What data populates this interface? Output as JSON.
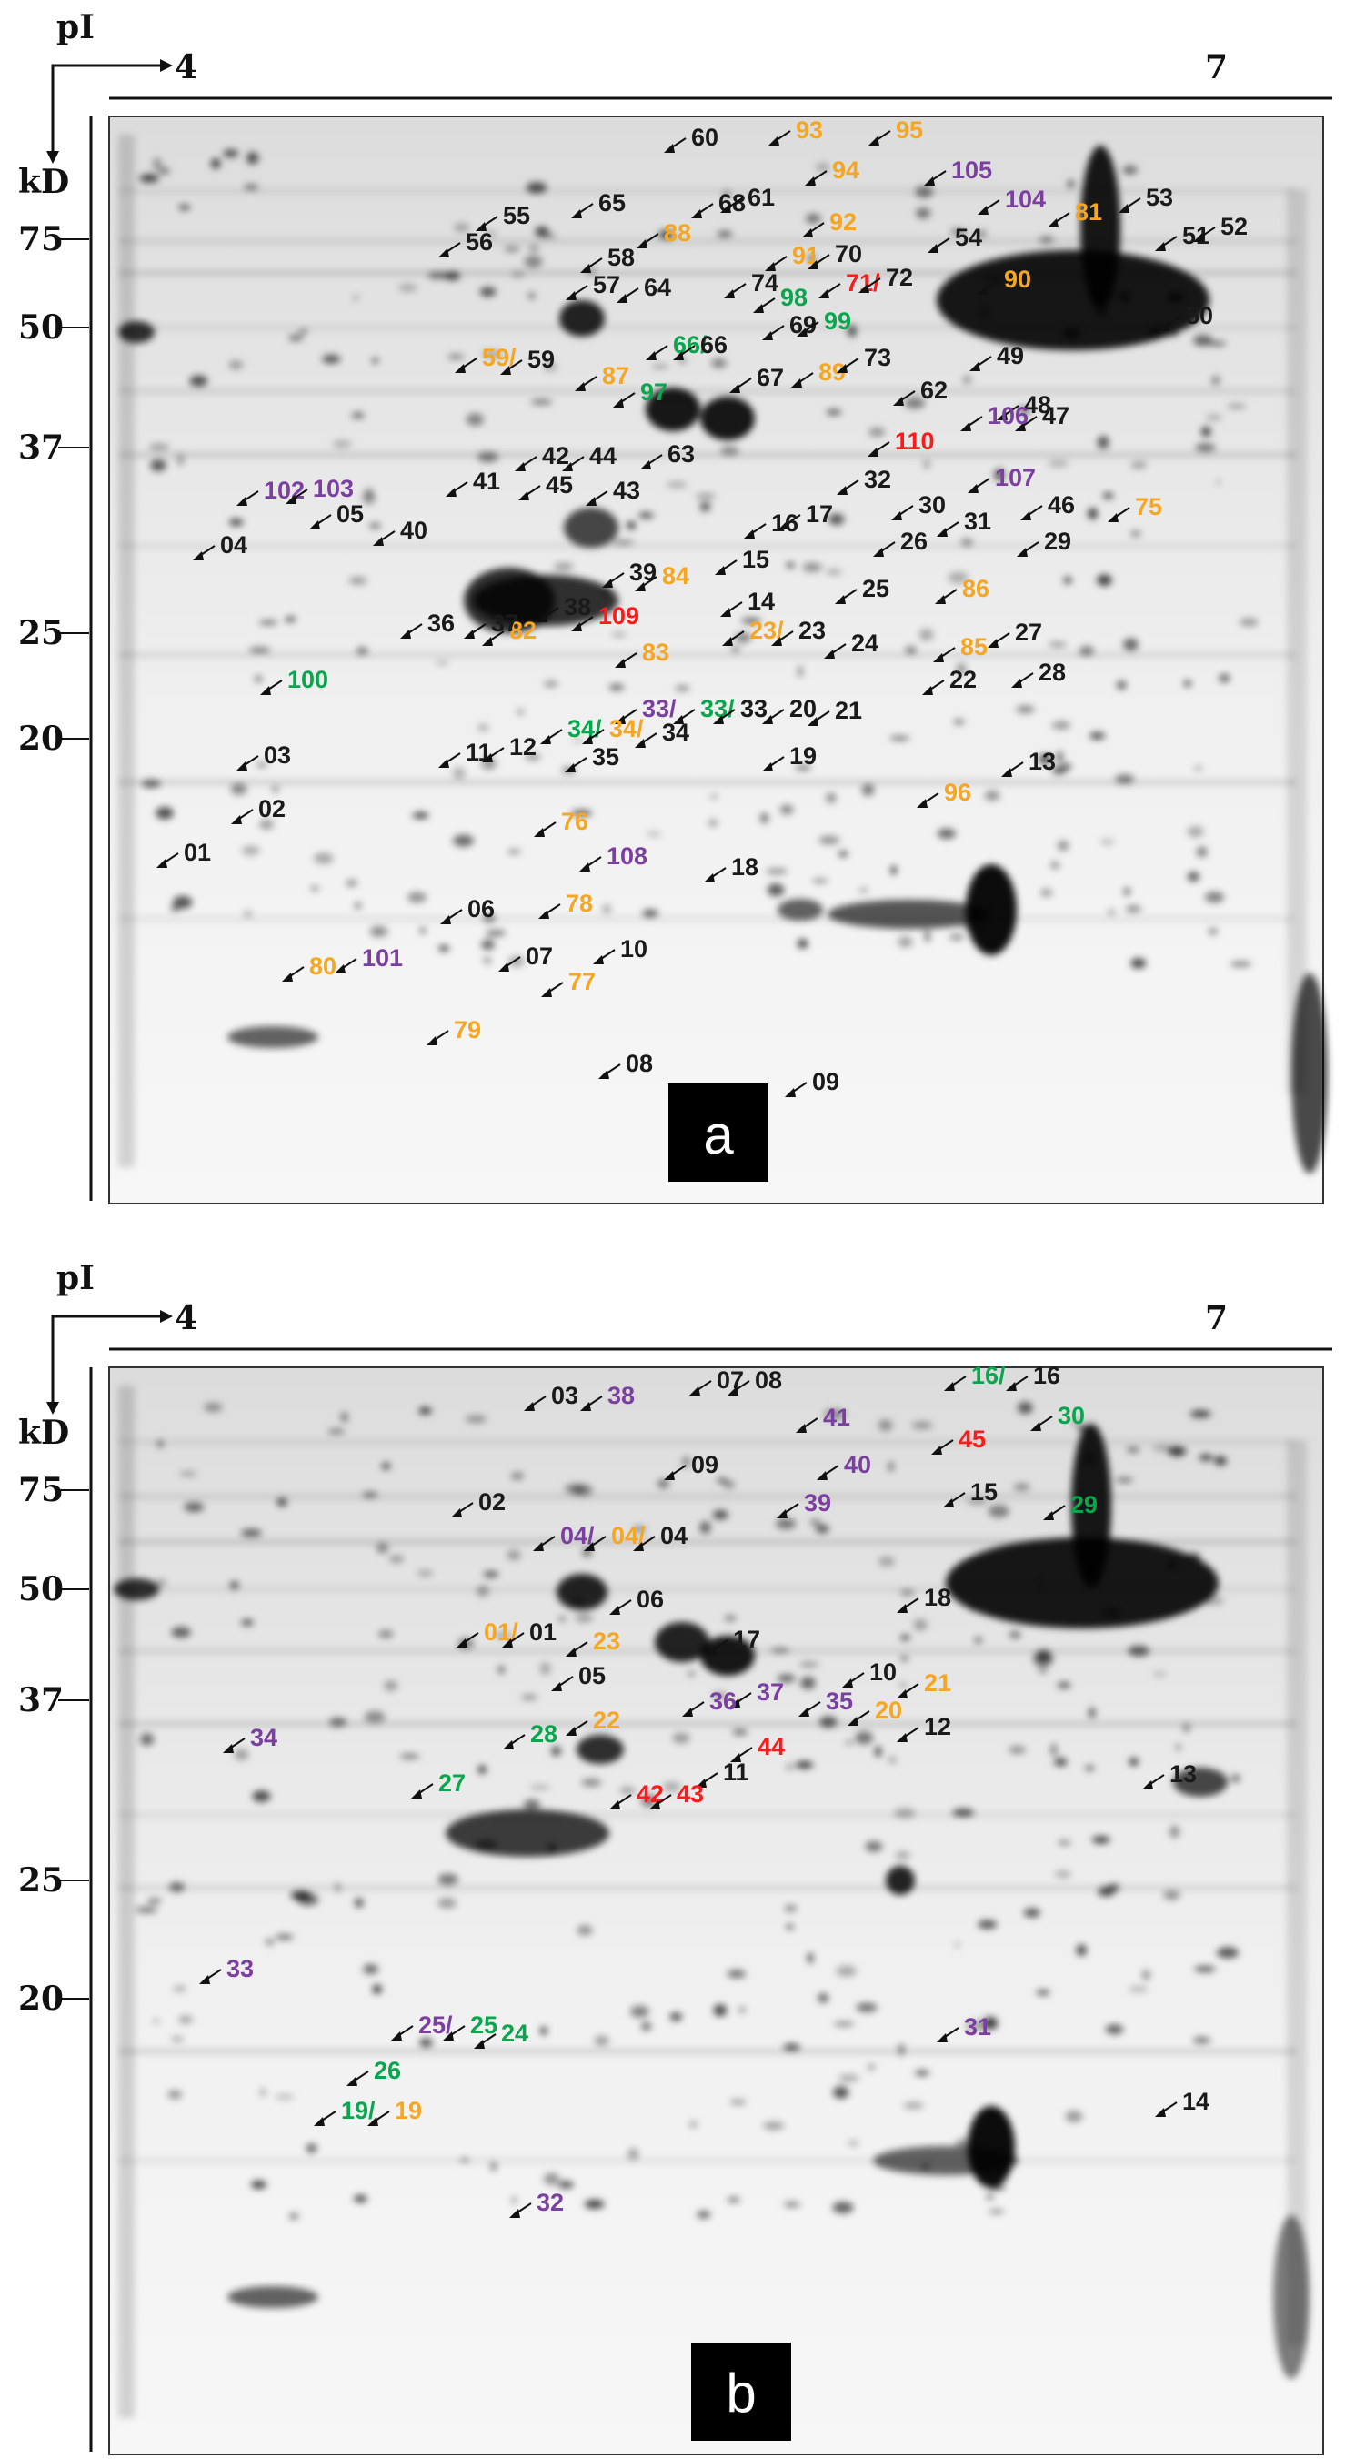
{
  "colors": {
    "black": "#1a1a1a",
    "orange": "#f5a623",
    "purple": "#7b3fa0",
    "green": "#0aa64e",
    "red": "#ff1a1a"
  },
  "panels": [
    {
      "id": "a",
      "letter": "a",
      "axis": {
        "pi_label": "pI",
        "pi_min": "4",
        "pi_max": "7",
        "kd_label": "kD",
        "kd_ticks": [
          "75",
          "50",
          "37",
          "25",
          "20"
        ]
      },
      "spots": [
        {
          "t": "60",
          "c": "black"
        },
        {
          "t": "93",
          "c": "orange"
        },
        {
          "t": "95",
          "c": "orange"
        },
        {
          "t": "94",
          "c": "orange"
        },
        {
          "t": "105",
          "c": "purple"
        },
        {
          "t": "53",
          "c": "black"
        },
        {
          "t": "65",
          "c": "black"
        },
        {
          "t": "55",
          "c": "black"
        },
        {
          "t": "68",
          "c": "black"
        },
        {
          "t": "61",
          "c": "black"
        },
        {
          "t": "92",
          "c": "orange"
        },
        {
          "t": "104",
          "c": "purple"
        },
        {
          "t": "81",
          "c": "orange"
        },
        {
          "t": "56",
          "c": "black"
        },
        {
          "t": "58",
          "c": "black"
        },
        {
          "t": "88",
          "c": "orange"
        },
        {
          "t": "91",
          "c": "orange"
        },
        {
          "t": "70",
          "c": "black"
        },
        {
          "t": "54",
          "c": "black"
        },
        {
          "t": "51",
          "c": "black"
        },
        {
          "t": "52",
          "c": "black"
        },
        {
          "t": "57",
          "c": "black"
        },
        {
          "t": "64",
          "c": "black"
        },
        {
          "t": "74",
          "c": "black"
        },
        {
          "t": "98",
          "c": "green"
        },
        {
          "t": "71/",
          "c": "red"
        },
        {
          "t": "72",
          "c": "black"
        },
        {
          "t": "90",
          "c": "orange"
        },
        {
          "t": "69",
          "c": "black"
        },
        {
          "t": "99",
          "c": "green"
        },
        {
          "t": "50",
          "c": "black"
        },
        {
          "t": "59/",
          "c": "orange"
        },
        {
          "t": "59",
          "c": "black"
        },
        {
          "t": "87",
          "c": "orange"
        },
        {
          "t": "66/",
          "c": "green"
        },
        {
          "t": "66",
          "c": "black"
        },
        {
          "t": "67",
          "c": "black"
        },
        {
          "t": "89",
          "c": "orange"
        },
        {
          "t": "73",
          "c": "black"
        },
        {
          "t": "49",
          "c": "black"
        },
        {
          "t": "97",
          "c": "green"
        },
        {
          "t": "62",
          "c": "black"
        },
        {
          "t": "48",
          "c": "black"
        },
        {
          "t": "47",
          "c": "black"
        },
        {
          "t": "106",
          "c": "purple"
        },
        {
          "t": "110",
          "c": "red"
        },
        {
          "t": "42",
          "c": "black"
        },
        {
          "t": "44",
          "c": "black"
        },
        {
          "t": "63",
          "c": "black"
        },
        {
          "t": "32",
          "c": "black"
        },
        {
          "t": "30",
          "c": "black"
        },
        {
          "t": "107",
          "c": "purple"
        },
        {
          "t": "41",
          "c": "black"
        },
        {
          "t": "45",
          "c": "black"
        },
        {
          "t": "43",
          "c": "black"
        },
        {
          "t": "31",
          "c": "black"
        },
        {
          "t": "46",
          "c": "black"
        },
        {
          "t": "75",
          "c": "orange"
        },
        {
          "t": "102",
          "c": "purple"
        },
        {
          "t": "103",
          "c": "purple"
        },
        {
          "t": "05",
          "c": "black"
        },
        {
          "t": "40",
          "c": "black"
        },
        {
          "t": "17",
          "c": "black"
        },
        {
          "t": "16",
          "c": "black"
        },
        {
          "t": "26",
          "c": "black"
        },
        {
          "t": "29",
          "c": "black"
        },
        {
          "t": "04",
          "c": "black"
        },
        {
          "t": "39",
          "c": "black"
        },
        {
          "t": "15",
          "c": "black"
        },
        {
          "t": "14",
          "c": "black"
        },
        {
          "t": "84",
          "c": "orange"
        },
        {
          "t": "86",
          "c": "orange"
        },
        {
          "t": "109",
          "c": "red"
        },
        {
          "t": "25",
          "c": "black"
        },
        {
          "t": "82",
          "c": "orange"
        },
        {
          "t": "83",
          "c": "orange"
        },
        {
          "t": "23/",
          "c": "orange"
        },
        {
          "t": "23",
          "c": "black"
        },
        {
          "t": "24",
          "c": "black"
        },
        {
          "t": "85",
          "c": "orange"
        },
        {
          "t": "27",
          "c": "black"
        },
        {
          "t": "36",
          "c": "black"
        },
        {
          "t": "37",
          "c": "black"
        },
        {
          "t": "38",
          "c": "black"
        },
        {
          "t": "22",
          "c": "black"
        },
        {
          "t": "28",
          "c": "black"
        },
        {
          "t": "100",
          "c": "green"
        },
        {
          "t": "33/",
          "c": "purple"
        },
        {
          "t": "33/",
          "c": "green"
        },
        {
          "t": "33",
          "c": "black"
        },
        {
          "t": "20",
          "c": "black"
        },
        {
          "t": "21",
          "c": "black"
        },
        {
          "t": "11",
          "c": "black"
        },
        {
          "t": "12",
          "c": "black"
        },
        {
          "t": "34/",
          "c": "green"
        },
        {
          "t": "34/",
          "c": "orange"
        },
        {
          "t": "34",
          "c": "black"
        },
        {
          "t": "13",
          "c": "black"
        },
        {
          "t": "03",
          "c": "black"
        },
        {
          "t": "35",
          "c": "black"
        },
        {
          "t": "19",
          "c": "black"
        },
        {
          "t": "02",
          "c": "black"
        },
        {
          "t": "01",
          "c": "black"
        },
        {
          "t": "96",
          "c": "orange"
        },
        {
          "t": "76",
          "c": "orange"
        },
        {
          "t": "108",
          "c": "purple"
        },
        {
          "t": "18",
          "c": "black"
        },
        {
          "t": "06",
          "c": "black"
        },
        {
          "t": "78",
          "c": "orange"
        },
        {
          "t": "07",
          "c": "black"
        },
        {
          "t": "10",
          "c": "black"
        },
        {
          "t": "80",
          "c": "orange"
        },
        {
          "t": "101",
          "c": "purple"
        },
        {
          "t": "77",
          "c": "orange"
        },
        {
          "t": "79",
          "c": "orange"
        },
        {
          "t": "08",
          "c": "black"
        },
        {
          "t": "09",
          "c": "black"
        }
      ]
    },
    {
      "id": "b",
      "letter": "b",
      "axis": {
        "pi_label": "pI",
        "pi_min": "4",
        "pi_max": "7",
        "kd_label": "kD",
        "kd_ticks": [
          "75",
          "50",
          "37",
          "25",
          "20"
        ]
      },
      "spots": [
        {
          "t": "07",
          "c": "black"
        },
        {
          "t": "08",
          "c": "black"
        },
        {
          "t": "16/",
          "c": "green"
        },
        {
          "t": "16",
          "c": "black"
        },
        {
          "t": "03",
          "c": "black"
        },
        {
          "t": "38",
          "c": "purple"
        },
        {
          "t": "41",
          "c": "purple"
        },
        {
          "t": "30",
          "c": "green"
        },
        {
          "t": "45",
          "c": "red"
        },
        {
          "t": "09",
          "c": "black"
        },
        {
          "t": "40",
          "c": "purple"
        },
        {
          "t": "39",
          "c": "purple"
        },
        {
          "t": "15",
          "c": "black"
        },
        {
          "t": "29",
          "c": "green"
        },
        {
          "t": "02",
          "c": "black"
        },
        {
          "t": "04/",
          "c": "purple"
        },
        {
          "t": "04/",
          "c": "orange"
        },
        {
          "t": "04",
          "c": "black"
        },
        {
          "t": "06",
          "c": "black"
        },
        {
          "t": "18",
          "c": "black"
        },
        {
          "t": "01/",
          "c": "orange"
        },
        {
          "t": "01",
          "c": "black"
        },
        {
          "t": "23",
          "c": "orange"
        },
        {
          "t": "17",
          "c": "black"
        },
        {
          "t": "05",
          "c": "black"
        },
        {
          "t": "10",
          "c": "black"
        },
        {
          "t": "21",
          "c": "orange"
        },
        {
          "t": "37",
          "c": "purple"
        },
        {
          "t": "36",
          "c": "purple"
        },
        {
          "t": "35",
          "c": "purple"
        },
        {
          "t": "20",
          "c": "orange"
        },
        {
          "t": "22",
          "c": "orange"
        },
        {
          "t": "12",
          "c": "black"
        },
        {
          "t": "34",
          "c": "purple"
        },
        {
          "t": "28",
          "c": "green"
        },
        {
          "t": "44",
          "c": "red"
        },
        {
          "t": "11",
          "c": "black"
        },
        {
          "t": "13",
          "c": "black"
        },
        {
          "t": "27",
          "c": "green"
        },
        {
          "t": "42",
          "c": "red"
        },
        {
          "t": "43",
          "c": "red"
        },
        {
          "t": "33",
          "c": "purple"
        },
        {
          "t": "25/",
          "c": "purple"
        },
        {
          "t": "25",
          "c": "green"
        },
        {
          "t": "24",
          "c": "green"
        },
        {
          "t": "31",
          "c": "purple"
        },
        {
          "t": "26",
          "c": "green"
        },
        {
          "t": "14",
          "c": "black"
        },
        {
          "t": "19/",
          "c": "green"
        },
        {
          "t": "19",
          "c": "orange"
        },
        {
          "t": "32",
          "c": "purple"
        }
      ]
    }
  ]
}
